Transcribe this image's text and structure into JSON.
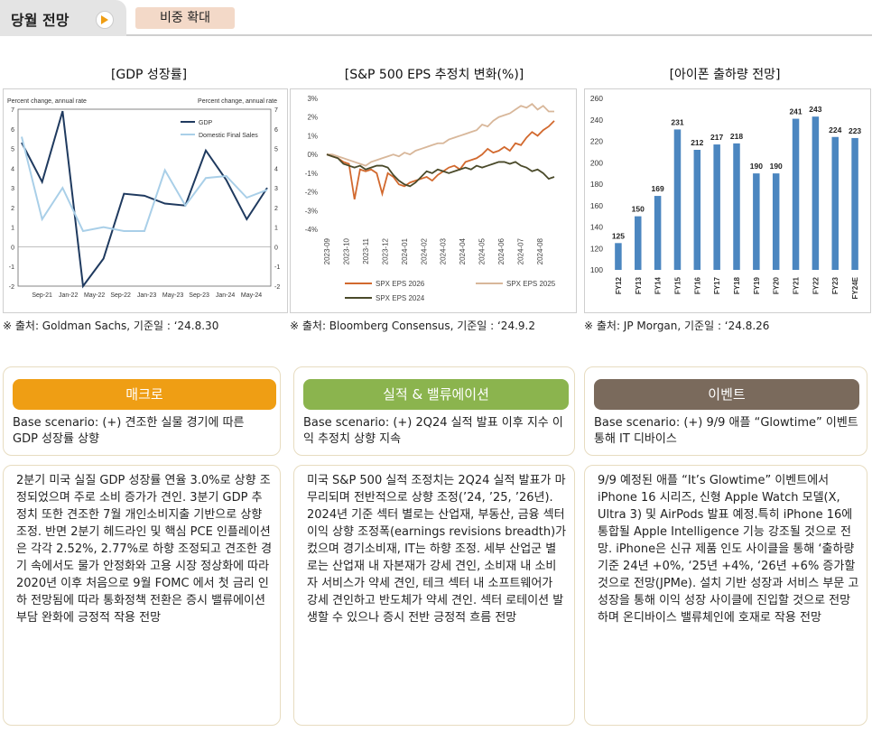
{
  "header": {
    "title": "당월 전망",
    "badge": "비중 확대"
  },
  "charts": {
    "gdp": {
      "title": "[GDP 성장률]",
      "source": "※ 출처: Goldman Sachs, 기준일 : ‘24.8.30"
    },
    "eps": {
      "title": "[S&P 500 EPS 추정치 변화(%)]",
      "source": "※ 출처: Bloomberg Consensus, 기준일 : ‘24.9.2"
    },
    "iphone": {
      "title": "[아이폰 출하량 전망]",
      "source": "※ 출처: JP Morgan, 기준일 : ‘24.8.26"
    }
  },
  "chart_data": [
    {
      "type": "line",
      "left_axis_label": "Percent change, annual rate",
      "right_axis_label": "Percent change, annual rate",
      "x_tick_labels": [
        "Sep-21",
        "Jan-22",
        "May-22",
        "Sep-22",
        "Jan-23",
        "May-23",
        "Sep-23",
        "Jan-24",
        "May-24"
      ],
      "x": [
        "Jun-21",
        "Sep-21",
        "Dec-21",
        "Mar-22",
        "Jun-22",
        "Sep-22",
        "Dec-22",
        "Mar-23",
        "Jun-23",
        "Sep-23",
        "Dec-23",
        "Mar-24",
        "Jun-24"
      ],
      "ylim": [
        -2,
        7
      ],
      "y_ticks": [
        -2,
        -1,
        0,
        1,
        2,
        3,
        4,
        5,
        6,
        7
      ],
      "series": [
        {
          "name": "GDP",
          "color": "#1f3a5f",
          "values": [
            5.3,
            3.3,
            6.9,
            -2.0,
            -0.6,
            2.7,
            2.6,
            2.2,
            2.1,
            4.9,
            3.4,
            1.4,
            3.0
          ]
        },
        {
          "name": "Domestic Final Sales",
          "color": "#a9cfe8",
          "values": [
            5.6,
            1.4,
            3.0,
            0.8,
            1.0,
            0.8,
            0.8,
            3.9,
            2.1,
            3.5,
            3.6,
            2.5,
            2.9
          ]
        }
      ]
    },
    {
      "type": "line",
      "x_tick_labels": [
        "2023-09",
        "2023-10",
        "2023-11",
        "2023-12",
        "2024-01",
        "2024-02",
        "2024-03",
        "2024-04",
        "2024-05",
        "2024-06",
        "2024-07",
        "2024-08"
      ],
      "ylim": [
        -4,
        3
      ],
      "y_tick_labels": [
        "3%",
        "2%",
        "1%",
        "0%",
        "-1%",
        "-2%",
        "-3%",
        "-4%"
      ],
      "y_ticks": [
        3,
        2,
        1,
        0,
        -1,
        -2,
        -3,
        -4
      ],
      "series": [
        {
          "name": "SPX EPS 2026",
          "color": "#d2692e",
          "values": [
            0,
            -0.1,
            -0.2,
            -0.4,
            -0.5,
            -2.4,
            -0.8,
            -0.9,
            -0.8,
            -1.0,
            -2.1,
            -1.0,
            -1.2,
            -1.6,
            -1.7,
            -1.5,
            -1.4,
            -1.3,
            -1.2,
            -1.4,
            -1.1,
            -0.9,
            -0.7,
            -0.6,
            -0.8,
            -0.4,
            -0.3,
            -0.2,
            0.0,
            0.3,
            0.1,
            0.2,
            0.4,
            0.2,
            0.6,
            0.5,
            0.9,
            1.2,
            1.0,
            1.3,
            1.5,
            1.8
          ]
        },
        {
          "name": "SPX EPS 2025",
          "color": "#d8b79a",
          "values": [
            0,
            0.0,
            -0.1,
            -0.2,
            -0.3,
            -0.4,
            -0.5,
            -0.6,
            -0.4,
            -0.3,
            -0.2,
            -0.1,
            0.0,
            -0.1,
            0.1,
            0.0,
            0.2,
            0.3,
            0.4,
            0.5,
            0.6,
            0.6,
            0.8,
            0.9,
            1.0,
            1.1,
            1.2,
            1.3,
            1.6,
            1.5,
            1.8,
            2.0,
            2.1,
            2.2,
            2.4,
            2.6,
            2.5,
            2.7,
            2.4,
            2.6,
            2.3,
            2.3
          ]
        },
        {
          "name": "SPX EPS 2024",
          "color": "#4a4a2a",
          "values": [
            0,
            -0.1,
            -0.2,
            -0.5,
            -0.6,
            -0.7,
            -0.6,
            -0.8,
            -0.7,
            -0.6,
            -0.6,
            -0.7,
            -1.1,
            -1.4,
            -1.6,
            -1.7,
            -1.5,
            -1.2,
            -0.9,
            -1.0,
            -0.8,
            -0.9,
            -1.0,
            -0.9,
            -0.8,
            -0.7,
            -0.8,
            -0.6,
            -0.7,
            -0.6,
            -0.5,
            -0.4,
            -0.4,
            -0.5,
            -0.4,
            -0.6,
            -0.7,
            -0.9,
            -0.8,
            -1.0,
            -1.3,
            -1.2
          ]
        }
      ]
    },
    {
      "type": "bar",
      "categories": [
        "FY12",
        "FY13",
        "FY14",
        "FY15",
        "FY16",
        "FY17",
        "FY18",
        "FY19",
        "FY20",
        "FY21",
        "FY22",
        "FY23",
        "FY24E"
      ],
      "values": [
        125,
        150,
        169,
        231,
        212,
        217,
        218,
        190,
        190,
        241,
        243,
        224,
        223
      ],
      "ylim": [
        100,
        260
      ],
      "y_ticks": [
        100,
        120,
        140,
        160,
        180,
        200,
        220,
        240,
        260
      ],
      "color": "#4b86c0"
    }
  ],
  "cards": [
    {
      "label": "매크로",
      "color": "#ef9e14",
      "scenario": "Base scenario: (+) 견조한 실물 경기에 따른 GDP 성장률 상향",
      "body": "2분기 미국 실질 GDP 성장률 연율 3.0%로 상향 조정되었으며 주로 소비 증가가 견인. 3분기 GDP 추정치 또한 견조한 7월 개인소비지출 기반으로 상향 조정. 반면 2분기 헤드라인 및 핵심 PCE 인플레이션은 각각 2.52%, 2.77%로 하향 조정되고 견조한 경기 속에서도 물가 안정화와 고용 시장 정상화에 따라 2020년 이후 처음으로 9월 FOMC 에서 첫 금리 인하 전망됨에 따라 통화정책 전환은 증시 밸류에이션 부담 완화에 긍정적 작용 전망"
    },
    {
      "label": "실적 & 밸류에이션",
      "color": "#8bb44e",
      "scenario": "Base scenario: (+) 2Q24 실적 발표 이후 지수 이익 추정치 상향 지속",
      "body": "미국 S&P 500 실적 조정치는 2Q24 실적 발표가 마무리되며 전반적으로 상향 조정(’24, ’25, ’26년). 2024년 기준 섹터 별로는 산업재, 부동산, 금융 섹터 이익 상향 조정폭(earnings revisions breadth)가 컸으며 경기소비재, IT는 하향 조정. 세부 산업군 별로는 산업재 내 자본재가 강세 견인, 소비재 내 소비자 서비스가 약세 견인, 테크 섹터 내 소프트웨어가 강세 견인하고 반도체가 약세 견인. 섹터 로테이션 발생할 수 있으나 증시 전반 긍정적 흐름 전망"
    },
    {
      "label": "이벤트",
      "color": "#7a6a5c",
      "scenario": "Base scenario: (+) 9/9 애플 “Glowtime” 이벤트 통해 IT 디바이스",
      "body": "9/9 예정된 애플 “It’s Glowtime” 이벤트에서 iPhone 16 시리즈, 신형 Apple Watch 모델(X, Ultra 3) 및 AirPods 발표 예정.특히 iPhone 16에 통합될 Apple Intelligence 기능 강조될 것으로 전망. iPhone은 신규 제품 인도 사이클을 통해 ‘출하량 기준 24년 +0%, ‘25년 +4%, ‘26년 +6% 증가할 것으로 전망(JPMe). 설치 기반 성장과 서비스 부문 고성장을 통해 이익 성장 사이클에 진입할 것으로 전망하며 온디바이스 밸류체인에 호재로 작용 전망"
    }
  ]
}
